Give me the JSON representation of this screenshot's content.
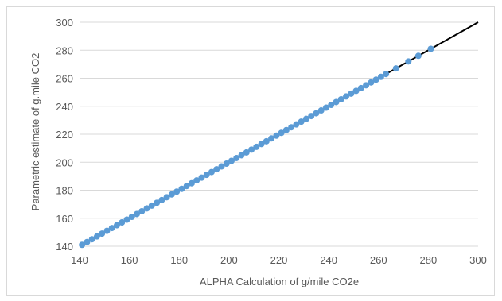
{
  "chart_data": {
    "type": "scatter",
    "title": "",
    "xlabel": "ALPHA Calculation of g/mile CO2e",
    "ylabel": "Parametric estimate of g.mile CO2",
    "xlim": [
      140,
      300
    ],
    "ylim": [
      140,
      300
    ],
    "x_ticks": [
      "140",
      "160",
      "180",
      "200",
      "220",
      "240",
      "260",
      "280",
      "300"
    ],
    "y_ticks": [
      "140",
      "160",
      "180",
      "200",
      "220",
      "240",
      "260",
      "280",
      "300"
    ],
    "grid": "horizontal",
    "legend": "none",
    "colors": {
      "points": "#5b9bd5",
      "line": "#000000",
      "grid": "#d9d9d9",
      "text": "#595959"
    },
    "series": [
      {
        "kind": "points",
        "x": [
          141,
          143,
          145,
          147,
          149,
          151,
          153,
          155,
          157,
          159,
          161,
          163,
          165,
          167,
          169,
          171,
          173,
          175,
          177,
          179,
          181,
          183,
          185,
          187,
          189,
          191,
          193,
          195,
          197,
          199,
          201,
          203,
          205,
          207,
          209,
          211,
          213,
          215,
          217,
          219,
          221,
          223,
          225,
          227,
          229,
          231,
          233,
          235,
          237,
          239,
          241,
          243,
          245,
          247,
          249,
          251,
          253,
          255,
          257,
          259,
          261,
          263,
          267,
          272,
          276,
          281
        ],
        "y": [
          141,
          143,
          145,
          147,
          149,
          151,
          153,
          155,
          157,
          159,
          161,
          163,
          165,
          167,
          169,
          171,
          173,
          175,
          177,
          179,
          181,
          183,
          185,
          187,
          189,
          191,
          193,
          195,
          197,
          199,
          201,
          203,
          205,
          207,
          209,
          211,
          213,
          215,
          217,
          219,
          221,
          223,
          225,
          227,
          229,
          231,
          233,
          235,
          237,
          239,
          241,
          243,
          245,
          247,
          249,
          251,
          253,
          255,
          257,
          259,
          261,
          263,
          267,
          272,
          276,
          281
        ]
      },
      {
        "kind": "line",
        "x": [
          140,
          300
        ],
        "y": [
          140,
          300
        ]
      }
    ]
  }
}
